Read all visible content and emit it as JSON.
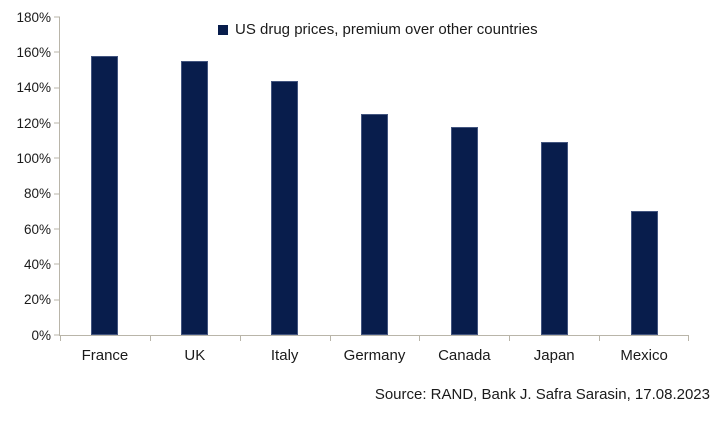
{
  "chart_data": {
    "type": "bar",
    "title": "",
    "legend": "US drug prices, premium over other countries",
    "categories": [
      "France",
      "UK",
      "Italy",
      "Germany",
      "Canada",
      "Japan",
      "Mexico"
    ],
    "values": [
      158,
      155,
      144,
      125,
      118,
      109,
      70
    ],
    "value_unit": "%",
    "xlabel": "",
    "ylabel": "",
    "ylim": [
      0,
      180
    ],
    "ytick_step": 20,
    "ytick_labels": [
      "0%",
      "20%",
      "40%",
      "60%",
      "80%",
      "100%",
      "120%",
      "140%",
      "160%",
      "180%"
    ],
    "grid": false,
    "legend_position": "top-center",
    "colors": {
      "bar": "#081d4c",
      "axis": "#b9b5a9",
      "text": "#1a1a1a",
      "background": "#ffffff"
    }
  },
  "source": {
    "text": "Source: RAND, Bank J. Safra Sarasin, 17.08.2023"
  }
}
